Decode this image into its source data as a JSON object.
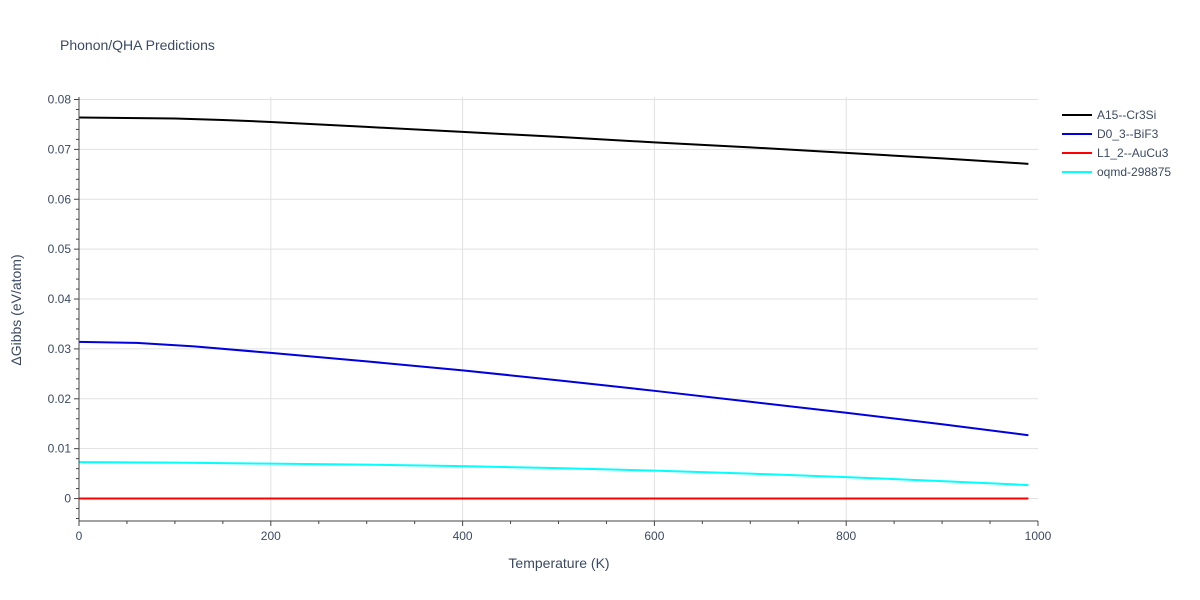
{
  "chart_data": {
    "type": "line",
    "title": "Phonon/QHA Predictions",
    "xlabel": "Temperature (K)",
    "ylabel": "ΔGibbs (eV/atom)",
    "xlim": [
      0,
      1000
    ],
    "ylim": [
      -0.0045,
      0.0805
    ],
    "x_ticks": [
      0,
      200,
      400,
      600,
      800,
      1000
    ],
    "y_ticks": [
      0,
      0.01,
      0.02,
      0.03,
      0.04,
      0.05,
      0.06,
      0.07,
      0.08
    ],
    "x_tick_labels": [
      "0",
      "200",
      "400",
      "600",
      "800",
      "1000"
    ],
    "y_tick_labels": [
      "0",
      "0.01",
      "0.02",
      "0.03",
      "0.04",
      "0.05",
      "0.06",
      "0.07",
      "0.08"
    ],
    "grid": true,
    "legend_position": "top-right",
    "series": [
      {
        "name": "A15--Cr3Si",
        "color": "#000000",
        "x": [
          0,
          50,
          100,
          150,
          200,
          300,
          400,
          500,
          600,
          700,
          800,
          900,
          990
        ],
        "y": [
          0.0764,
          0.0763,
          0.0762,
          0.0759,
          0.0755,
          0.0745,
          0.0735,
          0.0725,
          0.0714,
          0.0704,
          0.0693,
          0.0682,
          0.0671
        ]
      },
      {
        "name": "D0_3--BiF3",
        "color": "#0000dd",
        "x": [
          0,
          60,
          120,
          200,
          300,
          400,
          500,
          600,
          700,
          800,
          900,
          990
        ],
        "y": [
          0.0314,
          0.0312,
          0.0305,
          0.0292,
          0.0275,
          0.0257,
          0.0237,
          0.0216,
          0.0194,
          0.0172,
          0.0149,
          0.0127
        ]
      },
      {
        "name": "L1_2--AuCu3",
        "color": "#ff0000",
        "x": [
          0,
          990
        ],
        "y": [
          0,
          0
        ]
      },
      {
        "name": "oqmd-298875",
        "color": "#00ffff",
        "x": [
          0,
          100,
          200,
          300,
          400,
          500,
          600,
          700,
          800,
          900,
          990
        ],
        "y": [
          0.0073,
          0.0072,
          0.007,
          0.0068,
          0.0065,
          0.0061,
          0.0056,
          0.005,
          0.0043,
          0.0035,
          0.0027
        ]
      }
    ]
  }
}
